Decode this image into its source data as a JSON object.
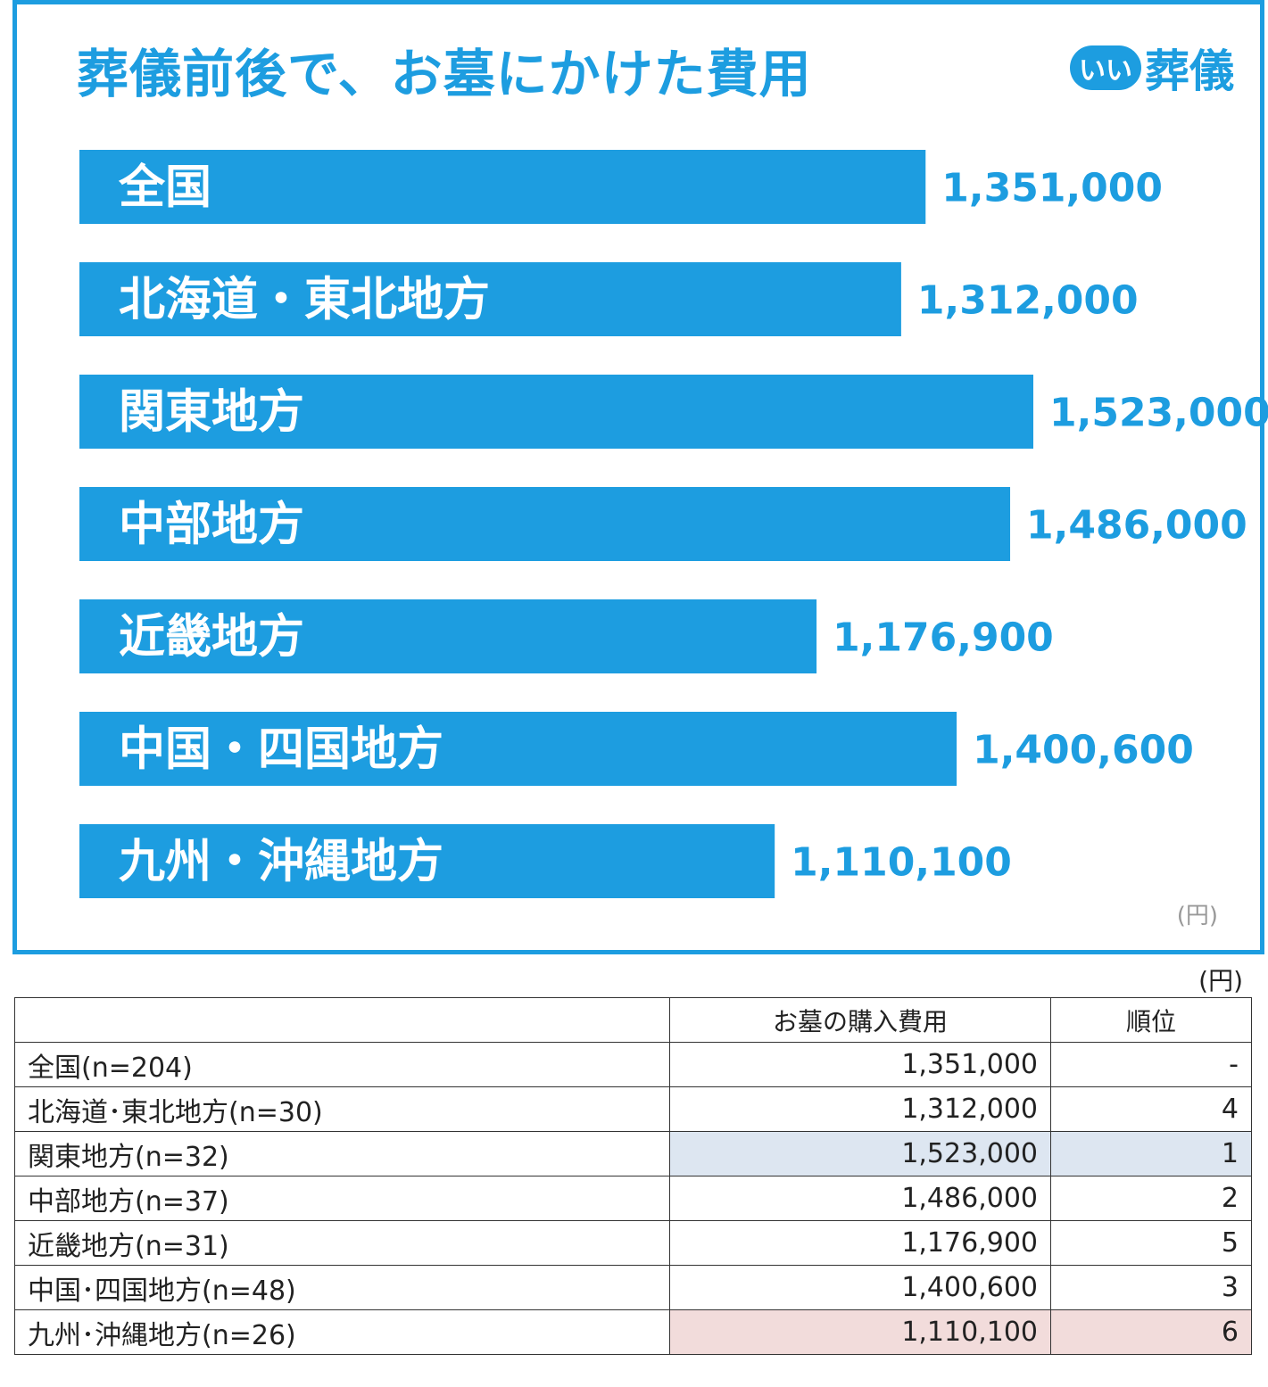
{
  "chart_data": {
    "type": "bar",
    "orientation": "horizontal",
    "title": "葬儀前後で、お墓にかけた費用",
    "categories": [
      "全国",
      "北海道・東北地方",
      "関東地方",
      "中部地方",
      "近畿地方",
      "中国・四国地方",
      "九州・沖縄地方"
    ],
    "values": [
      1351000,
      1312000,
      1523000,
      1486000,
      1176900,
      1400600,
      1110100
    ],
    "value_labels": [
      "1,351,000",
      "1,312,000",
      "1,523,000",
      "1,486,000",
      "1,176,900",
      "1,400,600",
      "1,110,100"
    ],
    "unit": "(円)",
    "bar_color": "#1d9de0",
    "grid": false
  },
  "brand": {
    "badge": "いい",
    "word": "葬儀",
    "color": "#1d9de0"
  },
  "table": {
    "unit": "(円)",
    "headers": [
      "",
      "お墓の購入費用",
      "順位"
    ],
    "rows": [
      {
        "region": "全国(n=204)",
        "cost": "1,351,000",
        "rank": "-",
        "highlight": ""
      },
      {
        "region": "北海道･東北地方(n=30)",
        "cost": "1,312,000",
        "rank": "4",
        "highlight": ""
      },
      {
        "region": "関東地方(n=32)",
        "cost": "1,523,000",
        "rank": "1",
        "highlight": "#dde6f1"
      },
      {
        "region": "中部地方(n=37)",
        "cost": "1,486,000",
        "rank": "2",
        "highlight": ""
      },
      {
        "region": "近畿地方(n=31)",
        "cost": "1,176,900",
        "rank": "5",
        "highlight": ""
      },
      {
        "region": "中国･四国地方(n=48)",
        "cost": "1,400,600",
        "rank": "3",
        "highlight": ""
      },
      {
        "region": "九州･沖縄地方(n=26)",
        "cost": "1,110,100",
        "rank": "6",
        "highlight": "#f2dcdb"
      }
    ]
  }
}
